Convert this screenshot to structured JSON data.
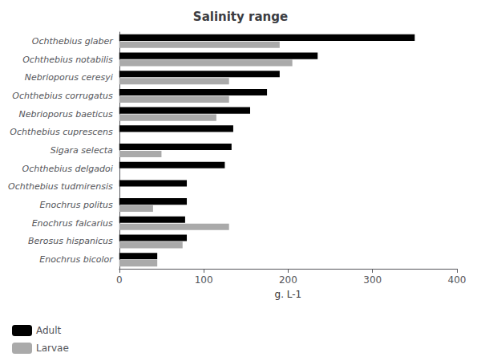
{
  "chart_data": {
    "type": "bar",
    "orientation": "horizontal",
    "title": "Salinity range",
    "xlabel": "g. L-1",
    "categories": [
      "Ochthebius glaber",
      "Ochthebius notabilis",
      "Nebrioporus ceresyi",
      "Ochthebius corrugatus",
      "Nebrioporus baeticus",
      "Ochthebius cuprescens",
      "Sigara selecta",
      "Ochthebius delgadoi",
      "Ochthebius tudmirensis",
      "Enochrus politus",
      "Enochrus falcarius",
      "Berosus hispanicus",
      "Enochrus bicolor"
    ],
    "series": [
      {
        "name": "Adult",
        "color": "#000000",
        "values": [
          350,
          235,
          190,
          175,
          155,
          135,
          133,
          125,
          80,
          80,
          78,
          80,
          45
        ]
      },
      {
        "name": "Larvae",
        "color": "#aaaaaa",
        "values": [
          190,
          205,
          130,
          130,
          115,
          0,
          50,
          0,
          0,
          40,
          130,
          75,
          45
        ]
      }
    ],
    "xlim": [
      0,
      400
    ],
    "xticks": [
      0,
      100,
      200,
      300,
      400
    ],
    "grid": false,
    "legend": "lower left"
  }
}
